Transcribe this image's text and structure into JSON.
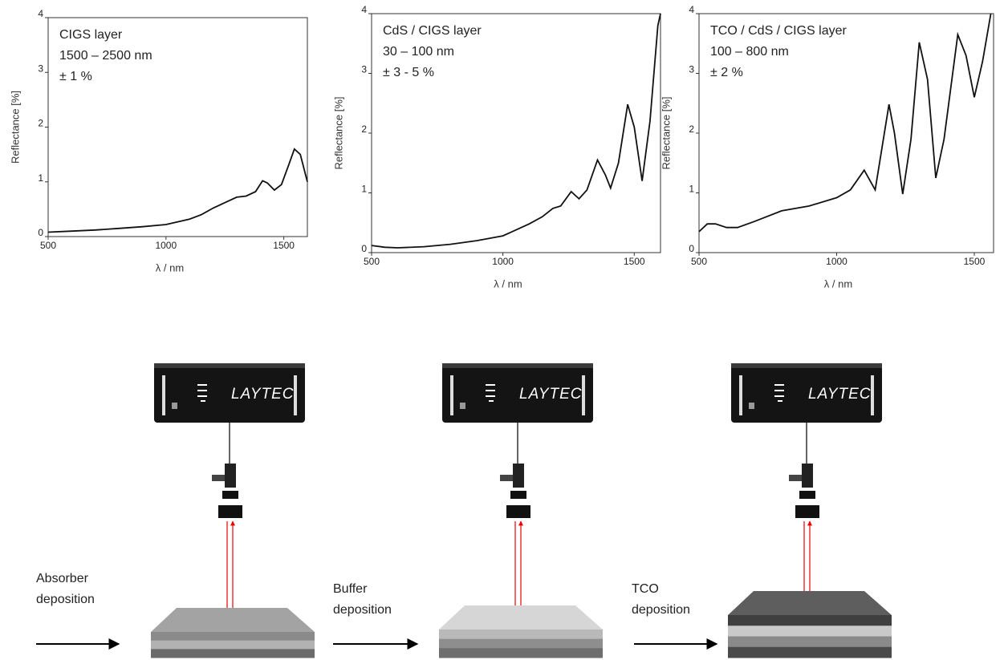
{
  "chart_data": [
    {
      "type": "line",
      "annotation": [
        "CIGS layer",
        "1500 – 2500 nm",
        "± 1 %"
      ],
      "x_label": "λ / nm",
      "y_label": "Reflectance [%]",
      "xlim": [
        500,
        1600
      ],
      "xticks": [
        500,
        1000,
        1500
      ],
      "ylim": [
        0,
        4
      ],
      "yticks": [
        0,
        1,
        2,
        3,
        4
      ],
      "x": [
        500,
        600,
        700,
        800,
        900,
        1000,
        1100,
        1150,
        1200,
        1250,
        1300,
        1340,
        1380,
        1410,
        1430,
        1460,
        1490,
        1520,
        1545,
        1570,
        1600
      ],
      "series": [
        {
          "color": "#111111",
          "values": [
            0.08,
            0.1,
            0.12,
            0.15,
            0.18,
            0.22,
            0.32,
            0.4,
            0.52,
            0.62,
            0.72,
            0.74,
            0.82,
            1.02,
            0.98,
            0.85,
            0.95,
            1.3,
            1.6,
            1.5,
            1.0
          ]
        }
      ]
    },
    {
      "type": "line",
      "annotation": [
        "CdS / CIGS layer",
        "30 – 100 nm",
        "± 3 - 5 %"
      ],
      "x_label": "λ / nm",
      "y_label": "Reflectance [%]",
      "xlim": [
        500,
        1600
      ],
      "xticks": [
        500,
        1000,
        1500
      ],
      "ylim": [
        0,
        4
      ],
      "yticks": [
        0,
        1,
        2,
        3,
        4
      ],
      "x": [
        500,
        550,
        600,
        700,
        800,
        900,
        1000,
        1050,
        1100,
        1150,
        1190,
        1220,
        1260,
        1290,
        1320,
        1360,
        1390,
        1410,
        1440,
        1475,
        1500,
        1530,
        1560,
        1590,
        1600
      ],
      "series": [
        {
          "color": "#111111",
          "values": [
            0.12,
            0.09,
            0.08,
            0.1,
            0.14,
            0.2,
            0.28,
            0.38,
            0.48,
            0.6,
            0.74,
            0.78,
            1.02,
            0.9,
            1.05,
            1.55,
            1.3,
            1.08,
            1.5,
            2.48,
            2.1,
            1.2,
            2.2,
            3.8,
            4.0
          ]
        }
      ]
    },
    {
      "type": "line",
      "annotation": [
        "TCO / CdS / CIGS layer",
        "100 – 800 nm",
        "± 2 %"
      ],
      "x_label": "λ / nm",
      "y_label": "Reflectance [%]",
      "xlim": [
        500,
        1570
      ],
      "xticks": [
        500,
        1000,
        1500
      ],
      "ylim": [
        0,
        4
      ],
      "yticks": [
        0,
        1,
        2,
        3,
        4
      ],
      "x": [
        500,
        530,
        560,
        600,
        640,
        700,
        800,
        900,
        1000,
        1050,
        1100,
        1140,
        1190,
        1210,
        1240,
        1270,
        1300,
        1330,
        1360,
        1390,
        1440,
        1470,
        1500,
        1530,
        1560
      ],
      "series": [
        {
          "color": "#111111",
          "values": [
            0.35,
            0.48,
            0.48,
            0.42,
            0.42,
            0.52,
            0.7,
            0.78,
            0.92,
            1.05,
            1.38,
            1.05,
            2.48,
            2.0,
            0.98,
            1.9,
            3.52,
            2.9,
            1.25,
            1.9,
            3.65,
            3.3,
            2.6,
            3.2,
            4.0
          ]
        }
      ]
    }
  ],
  "diagram": {
    "logo": "LAYTEC",
    "stages": [
      {
        "label": [
          "Absorber",
          "deposition"
        ]
      },
      {
        "label": [
          "Buffer",
          "deposition"
        ]
      },
      {
        "label": [
          "TCO",
          "deposition"
        ]
      }
    ]
  }
}
